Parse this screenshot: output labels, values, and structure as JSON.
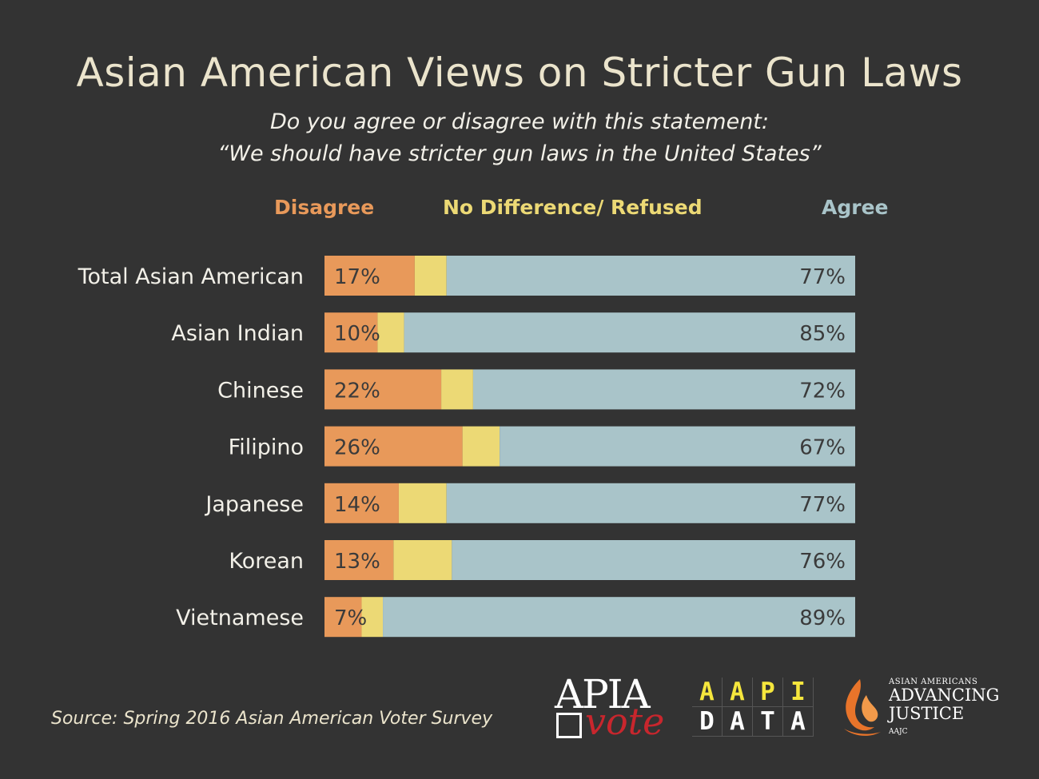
{
  "title": "Asian American Views on Stricter Gun Laws",
  "subtitle_line1": "Do you agree or disagree with this statement:",
  "subtitle_line2": "“We should have stricter gun laws in the United States”",
  "legend": {
    "disagree": "Disagree",
    "neutral": "No Difference/ Refused",
    "agree": "Agree"
  },
  "colors": {
    "background": "#333333",
    "disagree": "#e8995a",
    "neutral": "#ecd975",
    "agree": "#a9c4c9",
    "title": "#ebe4cc",
    "row_label": "#f2f0e8",
    "bar_label": "#3b3b3b"
  },
  "chart_data": {
    "type": "bar",
    "orientation": "horizontal",
    "stacked": true,
    "normalized_to_100": true,
    "categories": [
      "Total Asian American",
      "Asian Indian",
      "Chinese",
      "Filipino",
      "Japanese",
      "Korean",
      "Vietnamese"
    ],
    "series": [
      {
        "name": "Disagree",
        "values": [
          17,
          10,
          22,
          26,
          14,
          13,
          7
        ],
        "labels": [
          "17%",
          "10%",
          "22%",
          "26%",
          "14%",
          "13%",
          "7%"
        ]
      },
      {
        "name": "No Difference/ Refused",
        "values": [
          6,
          5,
          6,
          7,
          9,
          11,
          4
        ]
      },
      {
        "name": "Agree",
        "values": [
          77,
          85,
          72,
          67,
          77,
          76,
          89
        ],
        "labels": [
          "77%",
          "85%",
          "72%",
          "67%",
          "77%",
          "76%",
          "89%"
        ]
      }
    ],
    "xlim": [
      0,
      100
    ],
    "grid": false,
    "legend_position": "top"
  },
  "source": "Source: Spring 2016 Asian American Voter Survey",
  "logos": {
    "apia_vote": {
      "apia": "APIA",
      "vote": "vote"
    },
    "aapi_data": {
      "row1": [
        "A",
        "A",
        "P",
        "I"
      ],
      "row2": [
        "D",
        "A",
        "T",
        "A"
      ]
    },
    "aaj": {
      "top": "ASIAN AMERICANS",
      "line1": "ADVANCING",
      "line2": "JUSTICE",
      "small": "AAJC"
    }
  }
}
